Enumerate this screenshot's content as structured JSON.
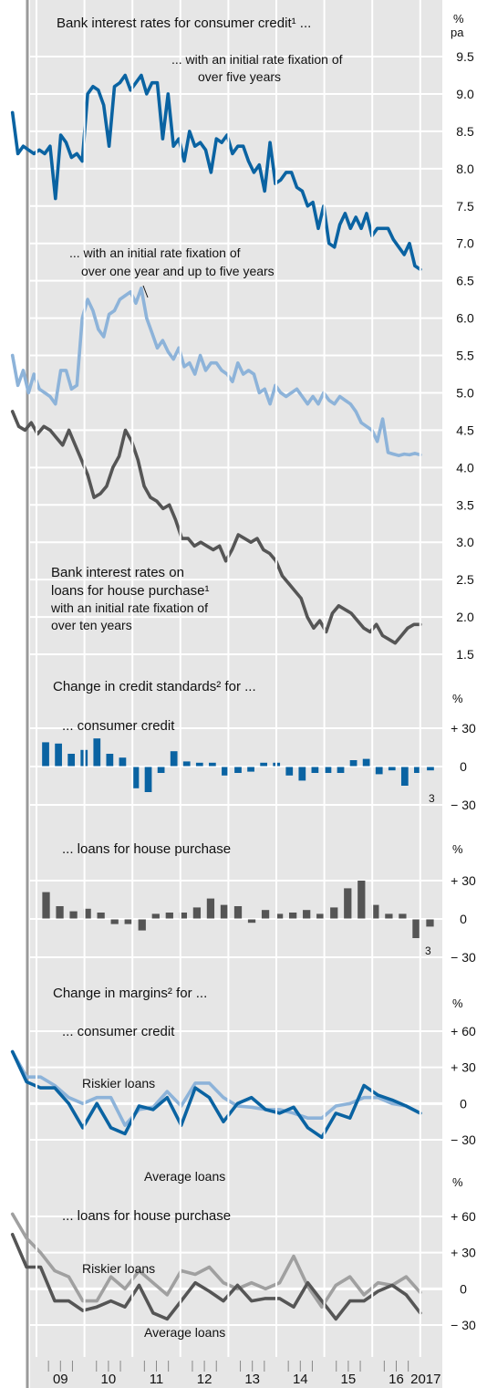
{
  "colors": {
    "background": "#e6e6e6",
    "grid": "#ffffff",
    "dark_blue": "#0a63a2",
    "light_blue": "#8db3d9",
    "dark_grey": "#555555",
    "mid_grey": "#a0a0a0",
    "frame": "#9a9a9a",
    "text": "#111111"
  },
  "x_axis": {
    "year_labels": [
      "09",
      "10",
      "11",
      "12",
      "13",
      "14",
      "15",
      "16",
      "2017"
    ]
  },
  "chart_data": [
    {
      "type": "line",
      "title": "Bank interest rates for consumer credit¹ ...",
      "unit_top": "%",
      "unit_bottom": "pa",
      "ylim": [
        1.5,
        9.5
      ],
      "y_ticks": [
        {
          "value": 9.5,
          "label": "9.5"
        },
        {
          "value": 9.0,
          "label": "9.0"
        },
        {
          "value": 8.5,
          "label": "8.5"
        },
        {
          "value": 8.0,
          "label": "8.0"
        },
        {
          "value": 7.5,
          "label": "7.5"
        },
        {
          "value": 7.0,
          "label": "7.0"
        },
        {
          "value": 6.5,
          "label": "6.5"
        },
        {
          "value": 6.0,
          "label": "6.0"
        },
        {
          "value": 5.5,
          "label": "5.5"
        },
        {
          "value": 5.0,
          "label": "5.0"
        },
        {
          "value": 4.5,
          "label": "4.5"
        },
        {
          "value": 4.0,
          "label": "4.0"
        },
        {
          "value": 3.5,
          "label": "3.5"
        },
        {
          "value": 3.0,
          "label": "3.0"
        },
        {
          "value": 2.5,
          "label": "2.5"
        },
        {
          "value": 2.0,
          "label": "2.0"
        },
        {
          "value": 1.5,
          "label": "1.5"
        }
      ],
      "annotations": [
        "... with an initial rate fixation of",
        "over five years",
        "... with an initial rate fixation of",
        "over one year and up to five years",
        "Bank interest rates on",
        "loans for house purchase¹",
        "with an initial rate fixation of",
        "over ten years"
      ],
      "series": [
        {
          "color_key": "dark_blue",
          "x_start": 2008.5,
          "values": [
            8.75,
            8.2,
            8.3,
            8.25,
            8.2,
            8.25,
            8.2,
            8.3,
            7.6,
            8.45,
            8.35,
            8.15,
            8.2,
            8.1,
            9.0,
            9.1,
            9.05,
            8.85,
            8.3,
            9.1,
            9.15,
            9.25,
            9.05,
            9.15,
            9.25,
            9.0,
            9.15,
            9.15,
            8.4,
            9.0,
            8.3,
            8.4,
            8.1,
            8.5,
            8.3,
            8.35,
            8.25,
            7.95,
            8.4,
            8.35,
            8.45,
            8.2,
            8.3,
            8.3,
            8.1,
            7.95,
            8.05,
            7.7,
            8.35,
            7.8,
            7.85,
            7.95,
            7.95,
            7.75,
            7.7,
            7.5,
            7.55,
            7.2,
            7.5,
            7.0,
            6.95,
            7.25,
            7.4,
            7.2,
            7.35,
            7.2,
            7.4,
            7.1,
            7.2,
            7.2,
            7.2,
            7.05,
            6.95,
            6.85,
            7.0,
            6.7,
            6.65
          ]
        },
        {
          "color_key": "light_blue",
          "x_start": 2008.5,
          "values": [
            5.5,
            5.1,
            5.3,
            5.0,
            5.25,
            5.05,
            5.0,
            4.95,
            4.85,
            5.3,
            5.3,
            5.05,
            5.1,
            6.0,
            6.25,
            6.1,
            5.85,
            5.75,
            6.05,
            6.1,
            6.25,
            6.3,
            6.35,
            6.2,
            6.4,
            6.0,
            5.8,
            5.6,
            5.7,
            5.55,
            5.45,
            5.6,
            5.35,
            5.4,
            5.25,
            5.5,
            5.3,
            5.4,
            5.4,
            5.3,
            5.25,
            5.15,
            5.4,
            5.25,
            5.3,
            5.25,
            5.0,
            5.05,
            4.85,
            5.1,
            5.0,
            4.95,
            5.0,
            5.05,
            4.95,
            4.85,
            4.95,
            4.85,
            5.0,
            4.9,
            4.85,
            4.95,
            4.9,
            4.85,
            4.75,
            4.6,
            4.55,
            4.5,
            4.35,
            4.65,
            4.2,
            4.18,
            4.16,
            4.18,
            4.17,
            4.19,
            4.17
          ]
        },
        {
          "color_key": "dark_grey",
          "x_start": 2008.5,
          "values": [
            4.75,
            4.55,
            4.5,
            4.6,
            4.45,
            4.55,
            4.5,
            4.4,
            4.3,
            4.5,
            4.3,
            4.1,
            3.9,
            3.6,
            3.65,
            3.75,
            4.0,
            4.15,
            4.5,
            4.35,
            4.1,
            3.75,
            3.6,
            3.55,
            3.45,
            3.5,
            3.3,
            3.05,
            3.05,
            2.95,
            3.0,
            2.95,
            2.9,
            2.95,
            2.75,
            2.9,
            3.1,
            3.05,
            3.0,
            3.05,
            2.9,
            2.85,
            2.75,
            2.55,
            2.45,
            2.35,
            2.25,
            2.0,
            1.85,
            1.95,
            1.8,
            2.05,
            2.15,
            2.1,
            2.05,
            1.95,
            1.85,
            1.8,
            1.9,
            1.75,
            1.7,
            1.65,
            1.75,
            1.85,
            1.9,
            1.9
          ]
        }
      ]
    },
    {
      "type": "bar",
      "title": "Change in credit standards² for ...",
      "subtitle": "... consumer credit",
      "unit": "%",
      "ylim": [
        -30,
        30
      ],
      "y_ticks": [
        {
          "value": 30,
          "label": "+ 30"
        },
        {
          "value": 0,
          "label": "0"
        },
        {
          "value": -30,
          "label": "− 30"
        }
      ],
      "footnote": "3",
      "color_key": "dark_blue",
      "values": [
        19,
        18,
        10,
        13,
        22,
        10,
        7,
        -17,
        -20,
        -5,
        12,
        4,
        3,
        3,
        -7,
        -5,
        -4,
        3,
        3,
        -7,
        -11,
        -5,
        -5,
        -5,
        5,
        6,
        -6,
        -3,
        -15,
        -5,
        -3
      ]
    },
    {
      "type": "bar",
      "subtitle": "... loans for house purchase",
      "unit": "%",
      "ylim": [
        -30,
        30
      ],
      "y_ticks": [
        {
          "value": 30,
          "label": "+ 30"
        },
        {
          "value": 0,
          "label": "0"
        },
        {
          "value": -30,
          "label": "− 30"
        }
      ],
      "footnote": "3",
      "color_key": "dark_grey",
      "values": [
        21,
        10,
        6,
        8,
        5,
        -4,
        -4,
        -9,
        4,
        5,
        5,
        9,
        16,
        11,
        10,
        -3,
        7,
        4,
        5,
        7,
        4,
        9,
        24,
        30,
        11,
        4,
        4,
        -15,
        -6
      ]
    },
    {
      "type": "line",
      "title": "Change in margins² for ...",
      "subtitle": "... consumer credit",
      "unit": "%",
      "ylim": [
        -30,
        60
      ],
      "y_ticks": [
        {
          "value": 60,
          "label": "+ 60"
        },
        {
          "value": 30,
          "label": "+ 30"
        },
        {
          "value": 0,
          "label": "0"
        },
        {
          "value": -30,
          "label": "− 30"
        }
      ],
      "series": [
        {
          "name": "Riskier loans",
          "color_key": "light_blue",
          "x_start": 2008.5,
          "values": [
            43,
            22,
            22,
            15,
            5,
            0,
            5,
            5,
            -18,
            -5,
            -3,
            10,
            -2,
            17,
            17,
            5,
            -2,
            -3,
            -5,
            -5,
            -8,
            -12,
            -12,
            -2,
            0,
            5,
            5,
            0,
            -2,
            -8
          ]
        },
        {
          "name": "Average loans",
          "color_key": "dark_blue",
          "x_start": 2008.5,
          "values": [
            43,
            18,
            13,
            13,
            0,
            -20,
            0,
            -20,
            -25,
            -2,
            -5,
            5,
            -18,
            13,
            5,
            -15,
            0,
            5,
            -5,
            -8,
            -3,
            -20,
            -28,
            -8,
            -12,
            15,
            7,
            3,
            -2,
            -8
          ]
        }
      ]
    },
    {
      "type": "line",
      "subtitle": "... loans for house purchase",
      "unit": "%",
      "ylim": [
        -30,
        60
      ],
      "y_ticks": [
        {
          "value": 60,
          "label": "+ 60"
        },
        {
          "value": 30,
          "label": "+ 30"
        },
        {
          "value": 0,
          "label": "0"
        },
        {
          "value": -30,
          "label": "− 30"
        }
      ],
      "series": [
        {
          "name": "Riskier loans",
          "color_key": "mid_grey",
          "x_start": 2008.5,
          "values": [
            62,
            42,
            30,
            15,
            10,
            -10,
            -10,
            10,
            0,
            15,
            5,
            -5,
            15,
            12,
            18,
            5,
            0,
            5,
            0,
            5,
            27,
            2,
            -15,
            3,
            10,
            -5,
            5,
            3,
            10,
            -3
          ]
        },
        {
          "name": "Average loans",
          "color_key": "dark_grey",
          "x_start": 2008.5,
          "values": [
            45,
            18,
            18,
            -10,
            -10,
            -18,
            -15,
            -10,
            -15,
            3,
            -20,
            -25,
            -10,
            5,
            -2,
            -10,
            3,
            -10,
            -8,
            -8,
            -15,
            5,
            -10,
            -25,
            -10,
            -10,
            -2,
            3,
            -5,
            -20
          ]
        }
      ]
    }
  ]
}
